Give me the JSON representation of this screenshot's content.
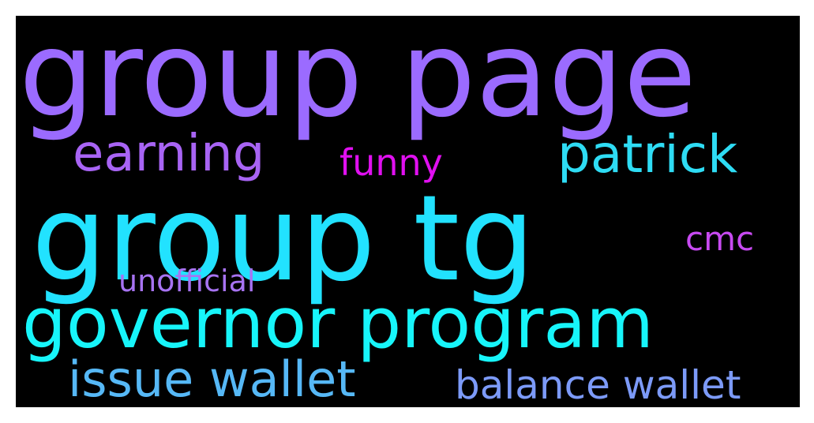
{
  "wordcloud": {
    "background": "#000000",
    "words": [
      {
        "id": "w-group-page",
        "text": "group page",
        "color": "#9B6BFF"
      },
      {
        "id": "w-earning",
        "text": "earning",
        "color": "#A864F4"
      },
      {
        "id": "w-funny",
        "text": "funny",
        "color": "#E010F0"
      },
      {
        "id": "w-patrick",
        "text": "patrick",
        "color": "#2EDCF4"
      },
      {
        "id": "w-group-tg",
        "text": "group tg",
        "color": "#22E2FF"
      },
      {
        "id": "w-cmc",
        "text": "cmc",
        "color": "#C84AF2"
      },
      {
        "id": "w-unofficial",
        "text": "unofficial",
        "color": "#A773F2"
      },
      {
        "id": "w-governor",
        "text": "governor program",
        "color": "#17F5FA"
      },
      {
        "id": "w-issue",
        "text": "issue wallet",
        "color": "#56B8F6"
      },
      {
        "id": "w-balance",
        "text": "balance wallet",
        "color": "#7C9AF8"
      }
    ]
  }
}
